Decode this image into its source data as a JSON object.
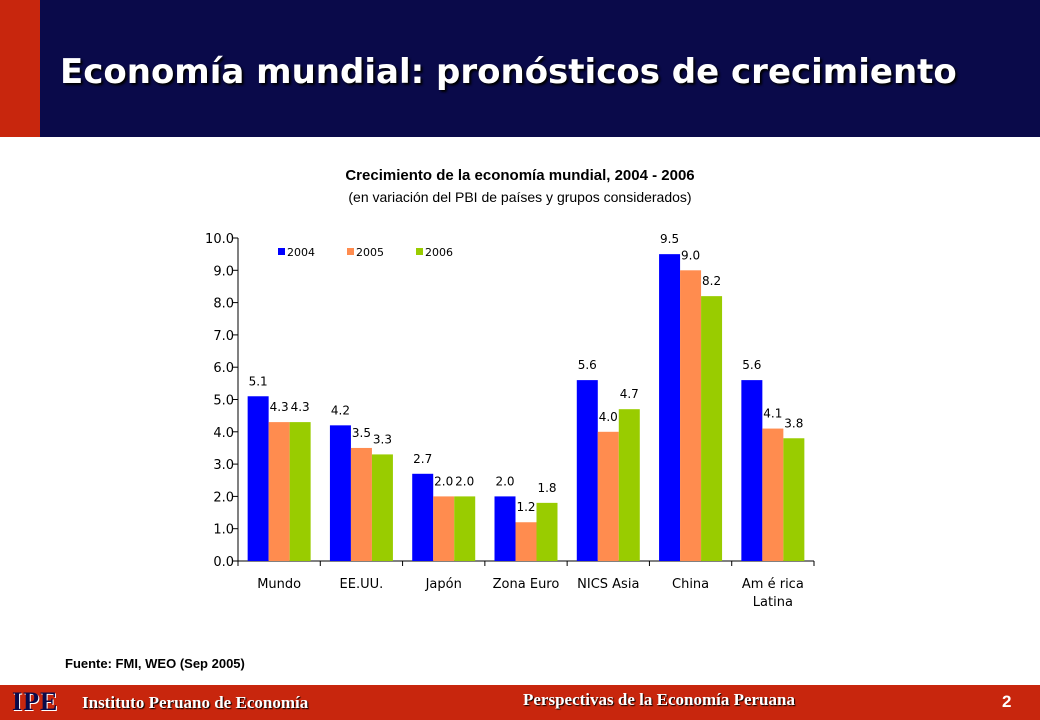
{
  "slide": {
    "title": "Economía mundial: pronósticos de crecimiento",
    "source": "Fuente: FMI, WEO (Sep 2005)",
    "footer_logo": "IPE",
    "footer_institution": "Instituto Peruano de Economía",
    "footer_center": "Perspectivas de la Economía Peruana",
    "page_number": "2"
  },
  "colors": {
    "header_bg": "#0a0a4a",
    "accent_red": "#c8260d",
    "series_2004": "#0000ff",
    "series_2005": "#ff8c4f",
    "series_2006": "#99cc00"
  },
  "chart_data": {
    "type": "bar",
    "title": "Crecimiento de la economía mundial, 2004 - 2006",
    "subtitle": "(en variación del PBI de países y grupos considerados)",
    "categories": [
      "Mundo",
      "EE.UU.",
      "Japón",
      "Zona Euro",
      "NICS Asia",
      "China",
      "América Latina"
    ],
    "category_lines": [
      [
        "Mundo"
      ],
      [
        "EE.UU."
      ],
      [
        "Japón"
      ],
      [
        "Zona Euro"
      ],
      [
        "NICS Asia"
      ],
      [
        "China"
      ],
      [
        "Am é rica",
        "Latina"
      ]
    ],
    "series": [
      {
        "name": "2004",
        "values": [
          5.1,
          4.2,
          2.7,
          2.0,
          5.6,
          9.5,
          5.6
        ],
        "labels": [
          "5.1",
          "4.2",
          "2.7",
          "2.0",
          "5.6",
          "9.5",
          "5.6"
        ]
      },
      {
        "name": "2005",
        "values": [
          4.3,
          3.5,
          2.0,
          1.2,
          4.0,
          9.0,
          4.1
        ],
        "labels": [
          "4.3",
          "3.5",
          "2.0",
          "1.2",
          "4.0",
          "9.0",
          "4.1"
        ]
      },
      {
        "name": "2006",
        "values": [
          4.3,
          3.3,
          2.0,
          1.8,
          4.7,
          8.2,
          3.8
        ],
        "labels": [
          "4.3",
          "3.3",
          "2.0",
          "1.8",
          "4.7",
          "8.2",
          "3.8"
        ]
      }
    ],
    "yticks": [
      "0.0",
      "1.0",
      "2.0",
      "3.0",
      "4.0",
      "5.0",
      "6.0",
      "7.0",
      "8.0",
      "9.0",
      "10.0"
    ],
    "ylim": [
      0,
      10
    ],
    "legend": "top-left",
    "grid": false
  }
}
